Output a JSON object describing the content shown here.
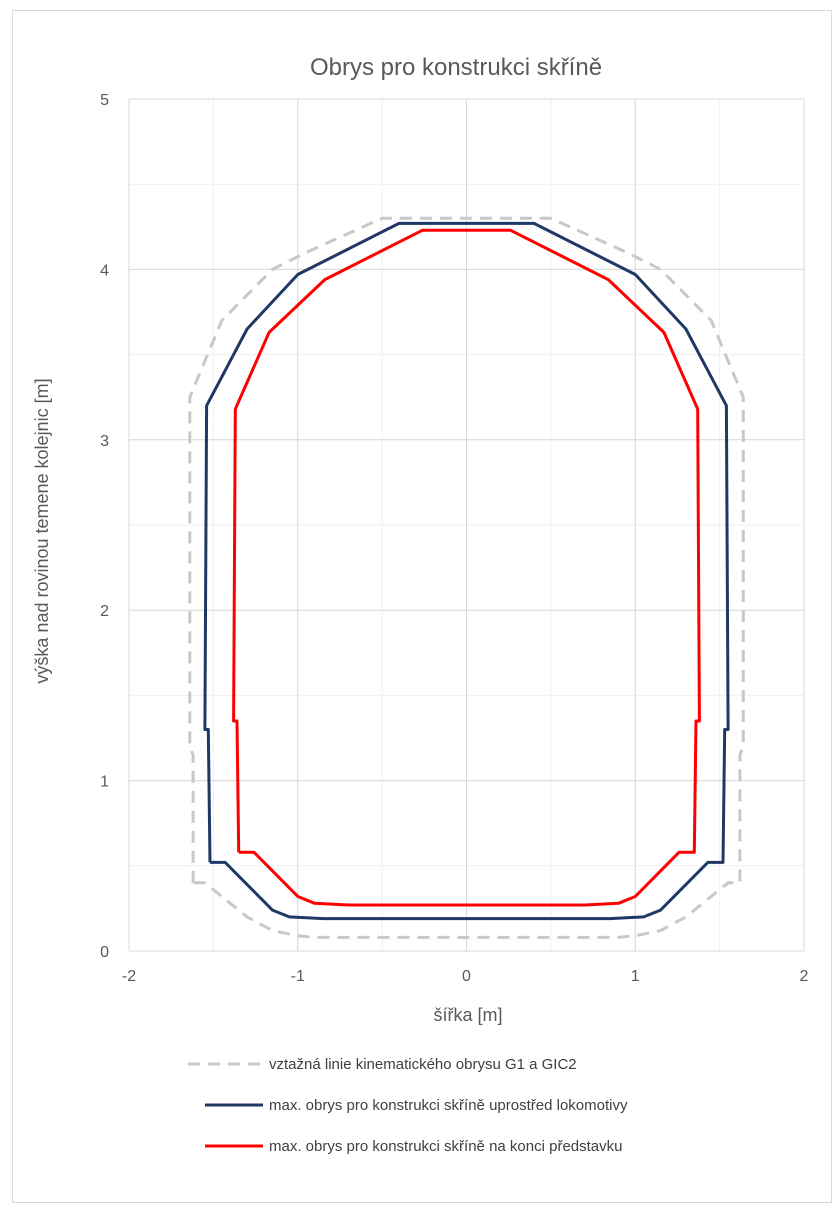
{
  "chart_data": {
    "type": "line",
    "title": "Obrys pro konstrukci skříně",
    "xlabel": "šířka [m]",
    "ylabel": "výška nad rovinou temene kolejnic [m]",
    "xlim": [
      -2,
      2
    ],
    "ylim": [
      0,
      5
    ],
    "x_ticks": [
      "-2",
      "-1",
      "0",
      "1",
      "2"
    ],
    "y_ticks": [
      "0",
      "1",
      "2",
      "3",
      "4",
      "5"
    ],
    "grid": true,
    "minor_grid_x": 0.5,
    "minor_grid_y": 0.5,
    "legend_position": "bottom",
    "series": [
      {
        "name": "vztažná linie kinematického obrysu G1 a GIC2",
        "color": "#c8c8c8",
        "dash": "dashed",
        "points": [
          [
            -1.62,
            0.4
          ],
          [
            -1.62,
            1.15
          ],
          [
            -1.64,
            1.2
          ],
          [
            -1.64,
            3.25
          ],
          [
            -1.45,
            3.7
          ],
          [
            -1.15,
            4.0
          ],
          [
            -0.95,
            4.1
          ],
          [
            -0.5,
            4.3
          ],
          [
            0.5,
            4.3
          ],
          [
            0.95,
            4.1
          ],
          [
            1.15,
            4.0
          ],
          [
            1.45,
            3.7
          ],
          [
            1.64,
            3.25
          ],
          [
            1.64,
            1.2
          ],
          [
            1.62,
            1.15
          ],
          [
            1.62,
            0.4
          ],
          [
            1.55,
            0.4
          ],
          [
            1.3,
            0.2
          ],
          [
            1.15,
            0.12
          ],
          [
            1.0,
            0.09
          ],
          [
            0.9,
            0.08
          ],
          [
            -0.9,
            0.08
          ],
          [
            -1.0,
            0.09
          ],
          [
            -1.15,
            0.12
          ],
          [
            -1.3,
            0.2
          ],
          [
            -1.55,
            0.4
          ],
          [
            -1.62,
            0.4
          ]
        ]
      },
      {
        "name": "max. obrys pro konstrukci skříně uprostřed lokomotivy",
        "color": "#1f3864",
        "dash": "solid",
        "points": [
          [
            -1.52,
            0.52
          ],
          [
            -1.53,
            1.3
          ],
          [
            -1.55,
            1.3
          ],
          [
            -1.54,
            3.2
          ],
          [
            -1.3,
            3.65
          ],
          [
            -1.0,
            3.97
          ],
          [
            -0.4,
            4.27
          ],
          [
            0.4,
            4.27
          ],
          [
            1.0,
            3.97
          ],
          [
            1.3,
            3.65
          ],
          [
            1.54,
            3.2
          ],
          [
            1.55,
            1.3
          ],
          [
            1.53,
            1.3
          ],
          [
            1.52,
            0.52
          ],
          [
            1.43,
            0.52
          ],
          [
            1.15,
            0.24
          ],
          [
            1.05,
            0.2
          ],
          [
            0.85,
            0.19
          ],
          [
            -0.85,
            0.19
          ],
          [
            -1.05,
            0.2
          ],
          [
            -1.15,
            0.24
          ],
          [
            -1.43,
            0.52
          ],
          [
            -1.52,
            0.52
          ]
        ]
      },
      {
        "name": "max. obrys pro konstrukci skříně na konci představku",
        "color": "#ff0000",
        "dash": "solid",
        "points": [
          [
            -1.35,
            0.58
          ],
          [
            -1.36,
            1.35
          ],
          [
            -1.38,
            1.35
          ],
          [
            -1.37,
            3.18
          ],
          [
            -1.17,
            3.63
          ],
          [
            -0.84,
            3.94
          ],
          [
            -0.26,
            4.23
          ],
          [
            0.26,
            4.23
          ],
          [
            0.84,
            3.94
          ],
          [
            1.17,
            3.63
          ],
          [
            1.37,
            3.18
          ],
          [
            1.38,
            1.35
          ],
          [
            1.36,
            1.35
          ],
          [
            1.35,
            0.58
          ],
          [
            1.26,
            0.58
          ],
          [
            1.0,
            0.32
          ],
          [
            0.9,
            0.28
          ],
          [
            0.7,
            0.27
          ],
          [
            -0.7,
            0.27
          ],
          [
            -0.9,
            0.28
          ],
          [
            -1.0,
            0.32
          ],
          [
            -1.26,
            0.58
          ],
          [
            -1.35,
            0.58
          ]
        ]
      }
    ]
  }
}
